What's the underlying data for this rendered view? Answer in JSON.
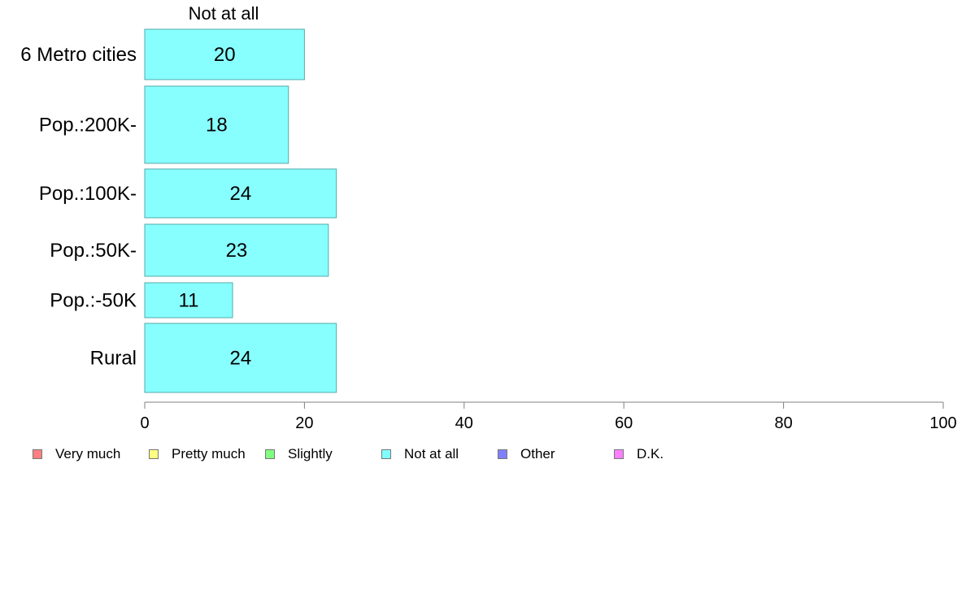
{
  "chart_data": {
    "type": "bar",
    "orientation": "horizontal",
    "title": "Not at all",
    "categories": [
      "6 Metro cities",
      "Pop.:200K-",
      "Pop.:100K-",
      "Pop.:50K-",
      "Pop.:-50K",
      "Rural"
    ],
    "series": [
      {
        "name": "Not at all",
        "values": [
          20,
          18,
          24,
          23,
          11,
          24
        ],
        "labels": [
          "20",
          "18",
          "24",
          "23",
          "11",
          "24"
        ]
      }
    ],
    "xlim": [
      0,
      100
    ],
    "xticks": [
      0,
      20,
      40,
      60,
      80,
      100
    ],
    "xtick_labels": [
      "0",
      "20",
      "40",
      "60",
      "80",
      "100"
    ],
    "grid": false,
    "legend_position": "bottom"
  },
  "legend": [
    {
      "label": "Very much",
      "color": "#ff8080"
    },
    {
      "label": "Pretty much",
      "color": "#ffff80"
    },
    {
      "label": "Slightly",
      "color": "#80ff80"
    },
    {
      "label": "Not at all",
      "color": "#80ffff"
    },
    {
      "label": "Other",
      "color": "#8080ff"
    },
    {
      "label": "D.K.",
      "color": "#ff80ff"
    }
  ],
  "colors": {
    "bar_fill": "#88ffff",
    "bar_stroke": "#55aaaa",
    "axis": "#808080"
  }
}
